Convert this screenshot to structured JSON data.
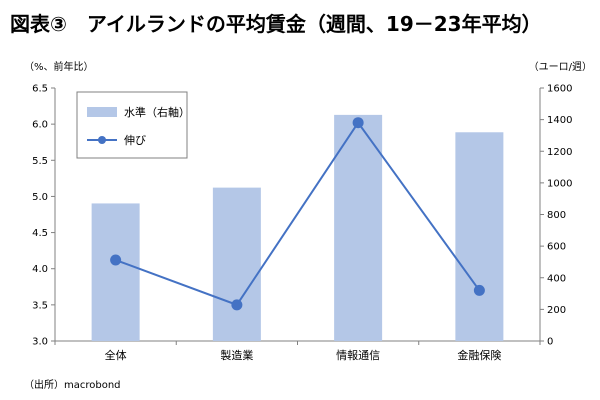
{
  "title": "図表③　アイルランドの平均賃金（週間、19－23年平均）",
  "unit_left": "（%、前年比）",
  "unit_right": "（ユーロ/週）",
  "source": "（出所）macrobond",
  "colors": {
    "bar": "#b4c7e7",
    "line": "#4472c4",
    "axis": "#808080"
  },
  "chart_data": {
    "type": "bar+line",
    "categories": [
      "全体",
      "製造業",
      "情報通信",
      "金融保険"
    ],
    "series": [
      {
        "name": "水準（右軸）",
        "type": "bar",
        "axis": "right",
        "values": [
          870,
          970,
          1430,
          1320
        ]
      },
      {
        "name": "伸び",
        "type": "line",
        "axis": "left",
        "values": [
          4.12,
          3.5,
          6.02,
          3.7
        ]
      }
    ],
    "y_left": {
      "min": 3.0,
      "max": 6.5,
      "step": 0.5,
      "ticks": [
        "3.0",
        "3.5",
        "4.0",
        "4.5",
        "5.0",
        "5.5",
        "6.0",
        "6.5"
      ]
    },
    "y_right": {
      "min": 0,
      "max": 1600,
      "step": 200,
      "ticks": [
        "0",
        "200",
        "400",
        "600",
        "800",
        "1000",
        "1200",
        "1400",
        "1600"
      ]
    },
    "legend": {
      "position": "top-left",
      "entries": [
        "水準（右軸）",
        "伸び"
      ]
    }
  }
}
